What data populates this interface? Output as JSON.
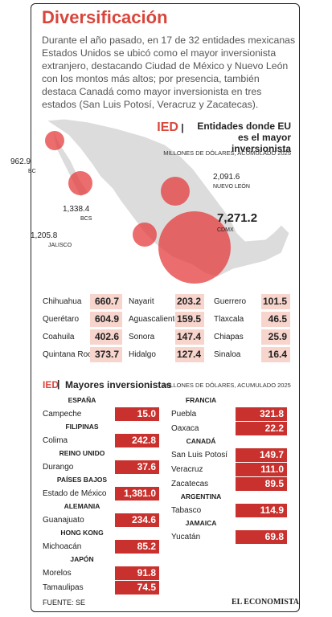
{
  "header": {
    "title": "Diversificación",
    "intro": "Durante el año pasado, en 17 de 32 entidades mexicanas Estados Unidos se ubicó como el mayor inversionista extranjero, destacando Ciudad de México y Nuevo León con los  montos más altos; por presencia, también destaca Canadá como mayor inversionista en tres estados (San Luis Potosí, Veracruz y Zacatecas)."
  },
  "map": {
    "tag": "IED",
    "heading": "Entidades donde EU es el mayor inversionista",
    "subheading": "MILLONES DE DÓLARES, ACUMULADO 2025",
    "bubbles": [
      {
        "value": "962.9",
        "label": "BC"
      },
      {
        "value": "1,338.4",
        "label": "BCS"
      },
      {
        "value": "1,205.8",
        "label": "JALISCO"
      },
      {
        "value": "2,091.6",
        "label": "NUEVO LEÓN"
      },
      {
        "value": "7,271.2",
        "label": "CDMX"
      }
    ]
  },
  "states_table": {
    "rows": [
      [
        [
          "Chihuahua",
          "660.7"
        ],
        [
          "Nayarit",
          "203.2"
        ],
        [
          "Guerrero",
          "101.5"
        ]
      ],
      [
        [
          "Querétaro",
          "604.9"
        ],
        [
          "Aguascalientes",
          "159.5"
        ],
        [
          "Tlaxcala",
          "46.5"
        ]
      ],
      [
        [
          "Coahuila",
          "402.6"
        ],
        [
          "Sonora",
          "147.4"
        ],
        [
          "Chiapas",
          "25.9"
        ]
      ],
      [
        [
          "Quintana Roo",
          "373.7"
        ],
        [
          "Hidalgo",
          "127.4"
        ],
        [
          "Sinaloa",
          "16.4"
        ]
      ]
    ]
  },
  "investors": {
    "tag": "IED",
    "heading": "Mayores inversionistas",
    "subheading": "MILLONES DE DÓLARES, ACUMULADO 2025",
    "left": [
      {
        "country": "ESPAÑA",
        "states": [
          [
            "Campeche",
            "15.0"
          ]
        ]
      },
      {
        "country": "FILIPINAS",
        "states": [
          [
            "Colima",
            "242.8"
          ]
        ]
      },
      {
        "country": "REINO UNIDO",
        "states": [
          [
            "Durango",
            "37.6"
          ]
        ]
      },
      {
        "country": "PAÍSES BAJOS",
        "states": [
          [
            "Estado de México",
            "1,381.0"
          ]
        ]
      },
      {
        "country": "ALEMANIA",
        "states": [
          [
            "Guanajuato",
            "234.6"
          ]
        ]
      },
      {
        "country": "HONG KONG",
        "states": [
          [
            "Michoacán",
            "85.2"
          ]
        ]
      },
      {
        "country": "JAPÓN",
        "states": [
          [
            "Morelos",
            "91.8"
          ],
          [
            "Tamaulipas",
            "74.5"
          ]
        ]
      }
    ],
    "right": [
      {
        "country": "FRANCIA",
        "states": [
          [
            "Puebla",
            "321.8"
          ],
          [
            "Oaxaca",
            "22.2"
          ]
        ]
      },
      {
        "country": "CANADÁ",
        "states": [
          [
            "San Luis Potosí",
            "149.7"
          ],
          [
            "Veracruz",
            "111.0"
          ],
          [
            "Zacatecas",
            "89.5"
          ]
        ]
      },
      {
        "country": "ARGENTINA",
        "states": [
          [
            "Tabasco",
            "114.9"
          ]
        ]
      },
      {
        "country": "JAMAICA",
        "states": [
          [
            "Yucatán",
            "69.8"
          ]
        ]
      }
    ]
  },
  "footer": {
    "source": "FUENTE: SE",
    "brand": "EL ECONOMISTA"
  }
}
